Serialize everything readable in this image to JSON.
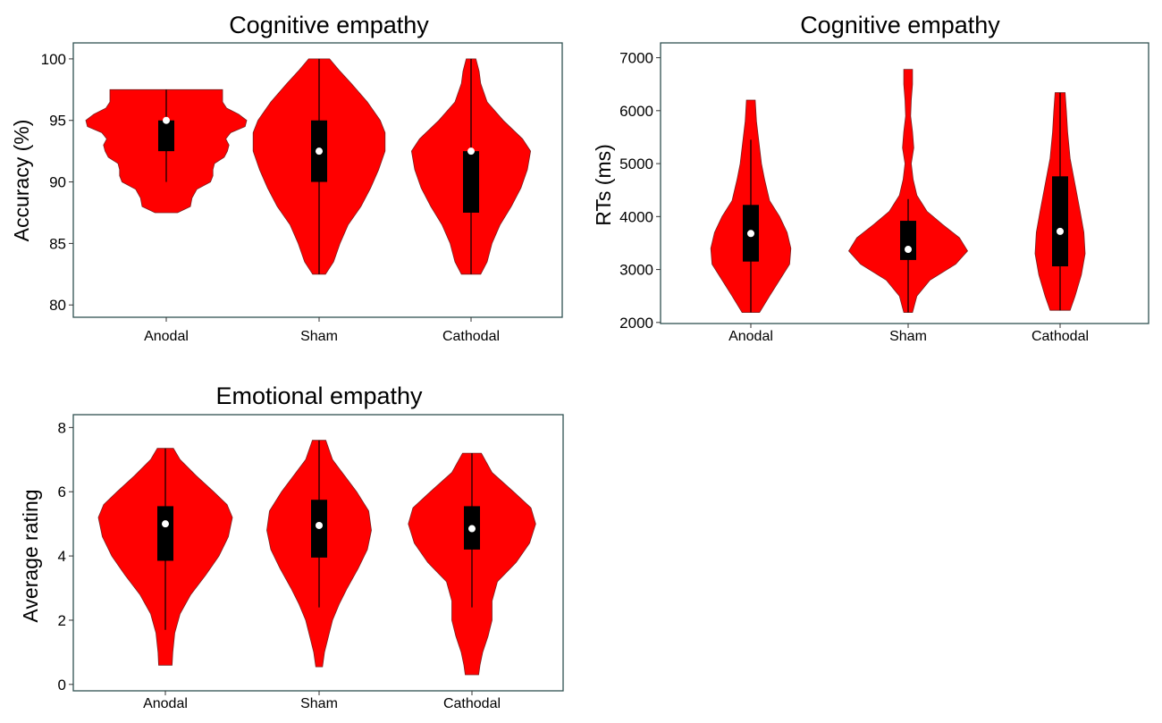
{
  "chart_data": [
    {
      "type": "violin",
      "title": "Cognitive empathy",
      "xlabel": "",
      "ylabel": "Accuracy (%)",
      "ylim": [
        79,
        101.3
      ],
      "yticks": [
        80,
        85,
        90,
        95,
        100
      ],
      "categories": [
        "Anodal",
        "Sham",
        "Cathodal"
      ],
      "grid": false,
      "box_color": "#000000",
      "median_color": "#ffffff",
      "violin_color": "#ff0000",
      "series": [
        {
          "category": "Anodal",
          "min": 87.5,
          "max": 97.5,
          "q1": 92.5,
          "q3": 95,
          "median": 95,
          "whisker_low": 90,
          "whisker_high": 97.5,
          "density": [
            [
              87.5,
              0.14
            ],
            [
              88,
              0.3
            ],
            [
              88.7,
              0.32
            ],
            [
              89.4,
              0.38
            ],
            [
              90,
              0.55
            ],
            [
              90.5,
              0.58
            ],
            [
              91,
              0.58
            ],
            [
              91.5,
              0.6
            ],
            [
              92,
              0.72
            ],
            [
              92.5,
              0.76
            ],
            [
              93,
              0.78
            ],
            [
              93.5,
              0.74
            ],
            [
              94,
              0.8
            ],
            [
              94.5,
              0.98
            ],
            [
              95,
              1.0
            ],
            [
              95.5,
              0.9
            ],
            [
              96,
              0.75
            ],
            [
              96.5,
              0.7
            ],
            [
              97,
              0.7
            ],
            [
              97.5,
              0.7
            ]
          ]
        },
        {
          "category": "Sham",
          "min": 82.5,
          "max": 100,
          "q1": 90,
          "q3": 95,
          "median": 92.5,
          "whisker_low": 82.5,
          "whisker_high": 100,
          "density": [
            [
              82.5,
              0.08
            ],
            [
              83.5,
              0.18
            ],
            [
              85,
              0.26
            ],
            [
              86.5,
              0.36
            ],
            [
              88,
              0.52
            ],
            [
              89.5,
              0.64
            ],
            [
              91,
              0.74
            ],
            [
              92.5,
              0.82
            ],
            [
              94,
              0.82
            ],
            [
              95,
              0.76
            ],
            [
              96.5,
              0.6
            ],
            [
              98,
              0.4
            ],
            [
              99,
              0.26
            ],
            [
              100,
              0.13
            ]
          ]
        },
        {
          "category": "Cathodal",
          "min": 82.5,
          "max": 100,
          "q1": 87.5,
          "q3": 92.5,
          "median": 92.5,
          "whisker_low": 82.5,
          "whisker_high": 100,
          "density": [
            [
              82.5,
              0.12
            ],
            [
              83.5,
              0.2
            ],
            [
              85,
              0.26
            ],
            [
              86.5,
              0.36
            ],
            [
              88,
              0.5
            ],
            [
              89.5,
              0.62
            ],
            [
              91,
              0.7
            ],
            [
              92.5,
              0.74
            ],
            [
              93.5,
              0.64
            ],
            [
              95,
              0.4
            ],
            [
              96.5,
              0.2
            ],
            [
              98,
              0.12
            ],
            [
              99,
              0.1
            ],
            [
              100,
              0.06
            ]
          ]
        }
      ]
    },
    {
      "type": "violin",
      "title": "Cognitive empathy",
      "xlabel": "",
      "ylabel": "RTs (ms)",
      "ylim": [
        1980,
        7280
      ],
      "yticks": [
        2000,
        3000,
        4000,
        5000,
        6000,
        7000
      ],
      "categories": [
        "Anodal",
        "Sham",
        "Cathodal"
      ],
      "grid": false,
      "box_color": "#000000",
      "median_color": "#ffffff",
      "violin_color": "#ff0000",
      "series": [
        {
          "category": "Anodal",
          "min": 2190,
          "max": 6200,
          "q1": 3150,
          "q3": 4220,
          "median": 3680,
          "whisker_low": 2190,
          "whisker_high": 5450,
          "density": [
            [
              2190,
              0.14
            ],
            [
              2500,
              0.3
            ],
            [
              2800,
              0.46
            ],
            [
              3100,
              0.62
            ],
            [
              3400,
              0.64
            ],
            [
              3700,
              0.58
            ],
            [
              4000,
              0.46
            ],
            [
              4300,
              0.3
            ],
            [
              4700,
              0.22
            ],
            [
              5000,
              0.17
            ],
            [
              5400,
              0.13
            ],
            [
              5800,
              0.09
            ],
            [
              6200,
              0.07
            ]
          ]
        },
        {
          "category": "Sham",
          "min": 2190,
          "max": 6780,
          "q1": 3180,
          "q3": 3920,
          "median": 3380,
          "whisker_low": 2190,
          "whisker_high": 4330,
          "density": [
            [
              2190,
              0.07
            ],
            [
              2500,
              0.14
            ],
            [
              2800,
              0.35
            ],
            [
              3100,
              0.76
            ],
            [
              3350,
              0.95
            ],
            [
              3600,
              0.82
            ],
            [
              3850,
              0.55
            ],
            [
              4100,
              0.3
            ],
            [
              4400,
              0.14
            ],
            [
              4700,
              0.08
            ],
            [
              5000,
              0.05
            ],
            [
              5300,
              0.09
            ],
            [
              5600,
              0.07
            ],
            [
              5900,
              0.04
            ],
            [
              6200,
              0.05
            ],
            [
              6500,
              0.07
            ],
            [
              6780,
              0.07
            ]
          ]
        },
        {
          "category": "Cathodal",
          "min": 2230,
          "max": 6340,
          "q1": 3060,
          "q3": 4760,
          "median": 3720,
          "whisker_low": 2230,
          "whisker_high": 6340,
          "density": [
            [
              2230,
              0.16
            ],
            [
              2500,
              0.24
            ],
            [
              2900,
              0.34
            ],
            [
              3300,
              0.4
            ],
            [
              3700,
              0.38
            ],
            [
              4100,
              0.32
            ],
            [
              4600,
              0.24
            ],
            [
              5100,
              0.16
            ],
            [
              5600,
              0.12
            ],
            [
              6000,
              0.1
            ],
            [
              6340,
              0.08
            ]
          ]
        }
      ]
    },
    {
      "type": "violin",
      "title": "Emotional empathy",
      "xlabel": "",
      "ylabel": "Average rating",
      "ylim": [
        -0.2,
        8.4
      ],
      "yticks": [
        0,
        2,
        4,
        6,
        8
      ],
      "categories": [
        "Anodal",
        "Sham",
        "Cathodal"
      ],
      "grid": false,
      "box_color": "#000000",
      "median_color": "#ffffff",
      "violin_color": "#ff0000",
      "series": [
        {
          "category": "Anodal",
          "min": 0.6,
          "max": 7.35,
          "q1": 3.85,
          "q3": 5.55,
          "median": 5.0,
          "whisker_low": 1.7,
          "whisker_high": 7.35,
          "density": [
            [
              0.6,
              0.1
            ],
            [
              1.0,
              0.11
            ],
            [
              1.6,
              0.14
            ],
            [
              2.2,
              0.22
            ],
            [
              2.8,
              0.38
            ],
            [
              3.4,
              0.6
            ],
            [
              4.0,
              0.8
            ],
            [
              4.6,
              0.94
            ],
            [
              5.2,
              1.0
            ],
            [
              5.6,
              0.92
            ],
            [
              6.0,
              0.72
            ],
            [
              6.5,
              0.46
            ],
            [
              7.0,
              0.22
            ],
            [
              7.35,
              0.12
            ]
          ]
        },
        {
          "category": "Sham",
          "min": 0.55,
          "max": 7.6,
          "q1": 3.95,
          "q3": 5.75,
          "median": 4.95,
          "whisker_low": 2.4,
          "whisker_high": 7.6,
          "density": [
            [
              0.55,
              0.05
            ],
            [
              1.0,
              0.08
            ],
            [
              1.5,
              0.14
            ],
            [
              2.0,
              0.2
            ],
            [
              2.5,
              0.3
            ],
            [
              3.0,
              0.42
            ],
            [
              3.6,
              0.58
            ],
            [
              4.2,
              0.72
            ],
            [
              4.8,
              0.78
            ],
            [
              5.4,
              0.74
            ],
            [
              6.0,
              0.56
            ],
            [
              6.5,
              0.38
            ],
            [
              7.0,
              0.2
            ],
            [
              7.6,
              0.1
            ]
          ]
        },
        {
          "category": "Cathodal",
          "min": 0.3,
          "max": 7.2,
          "q1": 4.2,
          "q3": 5.55,
          "median": 4.85,
          "whisker_low": 2.4,
          "whisker_high": 7.2,
          "density": [
            [
              0.3,
              0.1
            ],
            [
              0.6,
              0.12
            ],
            [
              1.0,
              0.16
            ],
            [
              1.5,
              0.24
            ],
            [
              2.0,
              0.3
            ],
            [
              2.6,
              0.3
            ],
            [
              3.2,
              0.38
            ],
            [
              3.8,
              0.66
            ],
            [
              4.4,
              0.86
            ],
            [
              5.0,
              0.95
            ],
            [
              5.5,
              0.88
            ],
            [
              6.0,
              0.62
            ],
            [
              6.6,
              0.3
            ],
            [
              7.2,
              0.14
            ]
          ]
        }
      ]
    }
  ]
}
